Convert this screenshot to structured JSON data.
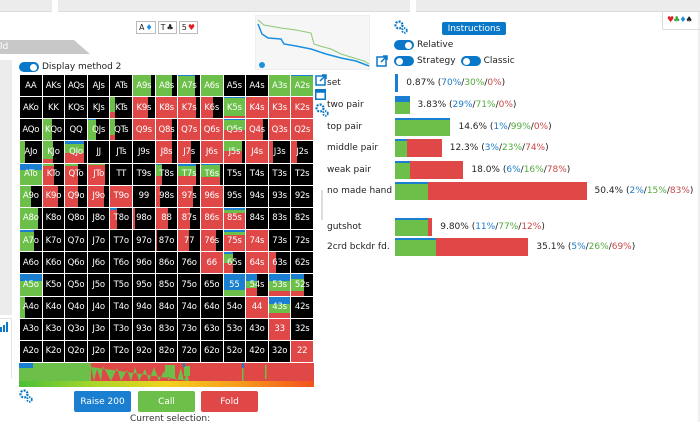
{
  "side_tab_label": "ld",
  "board": [
    {
      "rank": "A",
      "suit": "♦",
      "color": "#1f8ee0"
    },
    {
      "rank": "T",
      "suit": "♣",
      "color": "#222222"
    },
    {
      "rank": "5",
      "suit": "♥",
      "color": "#e02020"
    }
  ],
  "suits_legend": [
    {
      "glyph": "♥",
      "color": "#e02020"
    },
    {
      "glyph": "♣",
      "color": "#3aa03a"
    },
    {
      "glyph": "♦",
      "color": "#1f8ee0"
    },
    {
      "glyph": "♠",
      "color": "#222222"
    }
  ],
  "display_method": {
    "label": "Display method 2",
    "on": true
  },
  "colors": {
    "raise": "#1a7fd0",
    "call": "#6cc04a",
    "fold": "#e04848",
    "empty": "#000000",
    "accent": "#0a78c8"
  },
  "controls": {
    "instructions_label": "Instructions",
    "relative_label": "Relative",
    "strategy_label": "Strategy",
    "classic_label": "Classic"
  },
  "actions": {
    "raise_label": "Raise 200",
    "call_label": "Call",
    "fold_label": "Fold",
    "current_selection_label": "Current selection:"
  },
  "grid": {
    "rows": [
      [
        "AA",
        "AKs",
        "AQs",
        "AJs",
        "ATs",
        "A9s",
        "A8s",
        "A7s",
        "A6s",
        "A5s",
        "A4s",
        "A3s",
        "A2s"
      ],
      [
        "AKo",
        "KK",
        "KQs",
        "KJs",
        "KTs",
        "K9s",
        "K8s",
        "K7s",
        "K6s",
        "K5s",
        "K4s",
        "K3s",
        "K2s"
      ],
      [
        "AQo",
        "KQo",
        "QQ",
        "QJs",
        "QTs",
        "Q9s",
        "Q8s",
        "Q7s",
        "Q6s",
        "Q5s",
        "Q4s",
        "Q3s",
        "Q2s"
      ],
      [
        "AJo",
        "KJo",
        "QJo",
        "JJ",
        "JTs",
        "J9s",
        "J8s",
        "J7s",
        "J6s",
        "J5s",
        "J4s",
        "J3s",
        "J2s"
      ],
      [
        "ATo",
        "KTo",
        "QTo",
        "JTo",
        "TT",
        "T9s",
        "T8s",
        "T7s",
        "T6s",
        "T5s",
        "T4s",
        "T3s",
        "T2s"
      ],
      [
        "A9o",
        "K9o",
        "Q9o",
        "J9o",
        "T9o",
        "99",
        "98s",
        "97s",
        "96s",
        "95s",
        "94s",
        "93s",
        "92s"
      ],
      [
        "A8o",
        "K8o",
        "Q8o",
        "J8o",
        "T8o",
        "98o",
        "88",
        "87s",
        "86s",
        "85s",
        "84s",
        "83s",
        "82s"
      ],
      [
        "A7o",
        "K7o",
        "Q7o",
        "J7o",
        "T7o",
        "97o",
        "87o",
        "77",
        "76s",
        "75s",
        "74s",
        "73s",
        "72s"
      ],
      [
        "A6o",
        "K6o",
        "Q6o",
        "J6o",
        "T6o",
        "96o",
        "86o",
        "76o",
        "66",
        "65s",
        "64s",
        "63s",
        "62s"
      ],
      [
        "A5o",
        "K5o",
        "Q5o",
        "J5o",
        "T5o",
        "95o",
        "85o",
        "75o",
        "65o",
        "55",
        "54s",
        "53s",
        "52s"
      ],
      [
        "A4o",
        "K4o",
        "Q4o",
        "J4o",
        "T4o",
        "94o",
        "84o",
        "74o",
        "64o",
        "54o",
        "44",
        "43s",
        "42s"
      ],
      [
        "A3o",
        "K3o",
        "Q3o",
        "J3o",
        "T3o",
        "93o",
        "83o",
        "73o",
        "63o",
        "53o",
        "43o",
        "33",
        "32s"
      ],
      [
        "A2o",
        "K2o",
        "Q2o",
        "J2o",
        "T2o",
        "92o",
        "82o",
        "72o",
        "62o",
        "52o",
        "42o",
        "32o",
        "22"
      ]
    ],
    "strategy": {
      "A9s": {
        "w": 0.85,
        "r": 0,
        "c": 1,
        "f": 0
      },
      "A8s": {
        "w": 0.75,
        "r": 0,
        "c": 1,
        "f": 0
      },
      "A7s": {
        "w": 0.75,
        "r": 0.05,
        "c": 0.95,
        "f": 0
      },
      "A6s": {
        "w": 1.0,
        "r": 0,
        "c": 1,
        "f": 0
      },
      "A3s": {
        "w": 1.0,
        "r": 0,
        "c": 1,
        "f": 0
      },
      "A2s": {
        "w": 1.0,
        "r": 0.05,
        "c": 0.95,
        "f": 0
      },
      "KTs": {
        "w": 0.2,
        "r": 0,
        "c": 0.7,
        "f": 0.3
      },
      "K9s": {
        "w": 0.7,
        "r": 0,
        "c": 0,
        "f": 1
      },
      "K8s": {
        "w": 1.0,
        "r": 0,
        "c": 0,
        "f": 1
      },
      "K7s": {
        "w": 0.8,
        "r": 0,
        "c": 0,
        "f": 1
      },
      "K6s": {
        "w": 0.55,
        "r": 0,
        "c": 0,
        "f": 1
      },
      "K5s": {
        "w": 1.0,
        "r": 0.05,
        "c": 0.85,
        "f": 0.1
      },
      "K4s": {
        "w": 1.0,
        "r": 0,
        "c": 0,
        "f": 1
      },
      "K3s": {
        "w": 1.0,
        "r": 0,
        "c": 0,
        "f": 1
      },
      "K2s": {
        "w": 1.0,
        "r": 0,
        "c": 0,
        "f": 1
      },
      "KQo": {
        "w": 0.45,
        "r": 0,
        "c": 1,
        "f": 0
      },
      "QJs": {
        "w": 0.4,
        "r": 0.05,
        "c": 0.95,
        "f": 0
      },
      "QTs": {
        "w": 0.2,
        "r": 0,
        "c": 0.75,
        "f": 0.25
      },
      "Q9s": {
        "w": 1.0,
        "r": 0,
        "c": 0,
        "f": 1
      },
      "Q8s": {
        "w": 0.75,
        "r": 0,
        "c": 0,
        "f": 1
      },
      "Q7s": {
        "w": 1.0,
        "r": 0,
        "c": 0,
        "f": 1
      },
      "Q6s": {
        "w": 1.0,
        "r": 0,
        "c": 0,
        "f": 1
      },
      "Q5s": {
        "w": 1.0,
        "r": 0.05,
        "c": 0.45,
        "f": 0.5
      },
      "Q4s": {
        "w": 0.8,
        "r": 0,
        "c": 0,
        "f": 1
      },
      "Q3s": {
        "w": 1.0,
        "r": 0,
        "c": 0,
        "f": 1
      },
      "Q2s": {
        "w": 1.0,
        "r": 0,
        "c": 0,
        "f": 1
      },
      "AJo": {
        "w": 0.25,
        "r": 0,
        "c": 1,
        "f": 0
      },
      "KJo": {
        "w": 0.5,
        "r": 0,
        "c": 0.85,
        "f": 0.15
      },
      "QJo": {
        "w": 0.85,
        "r": 0.1,
        "c": 0.45,
        "f": 0.45
      },
      "J8s": {
        "w": 0.75,
        "r": 0,
        "c": 0,
        "f": 1
      },
      "J7s": {
        "w": 0.6,
        "r": 0,
        "c": 0,
        "f": 1
      },
      "J6s": {
        "w": 1.0,
        "r": 0,
        "c": 0,
        "f": 1
      },
      "J5s": {
        "w": 0.85,
        "r": 0,
        "c": 0.45,
        "f": 0.55
      },
      "J4s": {
        "w": 1.0,
        "r": 0,
        "c": 0,
        "f": 1
      },
      "J3s": {
        "w": 0.2,
        "r": 0,
        "c": 0,
        "f": 1
      },
      "J2s": {
        "w": 0.25,
        "r": 0,
        "c": 0,
        "f": 1
      },
      "ATo": {
        "w": 1.0,
        "r": 0.3,
        "c": 0.7,
        "f": 0
      },
      "KTo": {
        "w": 0.55,
        "r": 0,
        "c": 0.1,
        "f": 0.9
      },
      "QTo": {
        "w": 0.6,
        "r": 0,
        "c": 0.1,
        "f": 0.9
      },
      "JTo": {
        "w": 0.8,
        "r": 0,
        "c": 0.05,
        "f": 0.95
      },
      "T8s": {
        "w": 0.3,
        "r": 0.05,
        "c": 0.55,
        "f": 0.4
      },
      "T7s": {
        "w": 0.8,
        "r": 0.1,
        "c": 0.5,
        "f": 0.4
      },
      "T6s": {
        "w": 0.9,
        "r": 0.05,
        "c": 0.6,
        "f": 0.35
      },
      "A9o": {
        "w": 0.5,
        "r": 0,
        "c": 1,
        "f": 0
      },
      "K9o": {
        "w": 0.7,
        "r": 0,
        "c": 0,
        "f": 1
      },
      "Q9o": {
        "w": 0.6,
        "r": 0,
        "c": 0,
        "f": 1
      },
      "J9o": {
        "w": 0.75,
        "r": 0,
        "c": 0,
        "f": 1
      },
      "T9o": {
        "w": 1.0,
        "r": 0,
        "c": 0,
        "f": 1
      },
      "98s": {
        "w": 0.2,
        "r": 0,
        "c": 0,
        "f": 1
      },
      "97s": {
        "w": 0.7,
        "r": 0,
        "c": 0,
        "f": 1
      },
      "96s": {
        "w": 1.0,
        "r": 0,
        "c": 0,
        "f": 1
      },
      "A8o": {
        "w": 0.85,
        "r": 0,
        "c": 1,
        "f": 0
      },
      "T8o": {
        "w": 0.3,
        "r": 0.1,
        "c": 0,
        "f": 0.9
      },
      "98o": {
        "w": 0.1,
        "r": 0,
        "c": 0,
        "f": 1
      },
      "88": {
        "w": 0.55,
        "r": 0,
        "c": 0,
        "f": 1
      },
      "87s": {
        "w": 0.55,
        "r": 0,
        "c": 0,
        "f": 1
      },
      "86s": {
        "w": 1.0,
        "r": 0,
        "c": 0,
        "f": 1
      },
      "85s": {
        "w": 1.0,
        "r": 0.1,
        "c": 0.15,
        "f": 0.75
      },
      "A7o": {
        "w": 0.65,
        "r": 0.1,
        "c": 0.9,
        "f": 0
      },
      "87o": {
        "w": 0.05,
        "r": 0,
        "c": 0,
        "f": 1
      },
      "77": {
        "w": 0.5,
        "r": 0,
        "c": 0,
        "f": 1
      },
      "76s": {
        "w": 0.7,
        "r": 0,
        "c": 0,
        "f": 1
      },
      "75s": {
        "w": 1.0,
        "r": 0.1,
        "c": 0.15,
        "f": 0.75
      },
      "74s": {
        "w": 1.0,
        "r": 0,
        "c": 0,
        "f": 1
      },
      "66": {
        "w": 1.0,
        "r": 0,
        "c": 0,
        "f": 1
      },
      "65s": {
        "w": 0.45,
        "r": 0.1,
        "c": 0.4,
        "f": 0.5
      },
      "64s": {
        "w": 1.0,
        "r": 0,
        "c": 0,
        "f": 1
      },
      "63s": {
        "w": 0.35,
        "r": 0,
        "c": 0,
        "f": 1
      },
      "A5o": {
        "w": 1.0,
        "r": 0.3,
        "c": 0.7,
        "f": 0
      },
      "55": {
        "w": 1.0,
        "r": 0.75,
        "c": 0.25,
        "f": 0
      },
      "54s": {
        "w": 0.5,
        "r": 0.3,
        "c": 0.35,
        "f": 0.35
      },
      "53s": {
        "w": 1.0,
        "r": 0.3,
        "c": 0.5,
        "f": 0.2
      },
      "52s": {
        "w": 0.6,
        "r": 0.2,
        "c": 0.6,
        "f": 0.2
      },
      "A4o": {
        "w": 0.25,
        "r": 0,
        "c": 1,
        "f": 0
      },
      "44": {
        "w": 1.0,
        "r": 0,
        "c": 0,
        "f": 1
      },
      "43s": {
        "w": 1.0,
        "r": 0.35,
        "c": 0.45,
        "f": 0.2
      },
      "33": {
        "w": 1.0,
        "r": 0,
        "c": 0,
        "f": 1
      },
      "22": {
        "w": 1.0,
        "r": 0,
        "c": 0,
        "f": 1
      }
    }
  },
  "categories": [
    {
      "label": "set",
      "pct": "0.87%",
      "raise": "70%",
      "call": "30%",
      "fold": "0%",
      "share": 0.0087,
      "r": 0.7,
      "c": 0.3,
      "f": 0.0
    },
    {
      "label": "two pair",
      "pct": "3.83%",
      "raise": "29%",
      "call": "71%",
      "fold": "0%",
      "share": 0.0383,
      "r": 0.29,
      "c": 0.71,
      "f": 0.0
    },
    {
      "label": "top pair",
      "pct": "14.6%",
      "raise": "1%",
      "call": "99%",
      "fold": "0%",
      "share": 0.146,
      "r": 0.01,
      "c": 0.99,
      "f": 0.0
    },
    {
      "label": "middle pair",
      "pct": "12.3%",
      "raise": "3%",
      "call": "23%",
      "fold": "74%",
      "share": 0.123,
      "r": 0.03,
      "c": 0.23,
      "f": 0.74
    },
    {
      "label": "weak pair",
      "pct": "18.0%",
      "raise": "6%",
      "call": "16%",
      "fold": "78%",
      "share": 0.18,
      "r": 0.06,
      "c": 0.16,
      "f": 0.78
    },
    {
      "label": "no made hand",
      "pct": "50.4%",
      "raise": "2%",
      "call": "15%",
      "fold": "83%",
      "share": 0.504,
      "r": 0.02,
      "c": 0.15,
      "f": 0.83
    },
    {
      "label": "gutshot",
      "pct": "9.80%",
      "raise": "11%",
      "call": "77%",
      "fold": "12%",
      "share": 0.098,
      "r": 0.11,
      "c": 0.77,
      "f": 0.12
    },
    {
      "label": "2crd bckdr fd.",
      "pct": "35.1%",
      "raise": "5%",
      "call": "26%",
      "fold": "69%",
      "share": 0.351,
      "r": 0.05,
      "c": 0.26,
      "f": 0.69
    }
  ],
  "overall": {
    "raise": 0.03,
    "call": 0.3,
    "fold": 0.67
  }
}
